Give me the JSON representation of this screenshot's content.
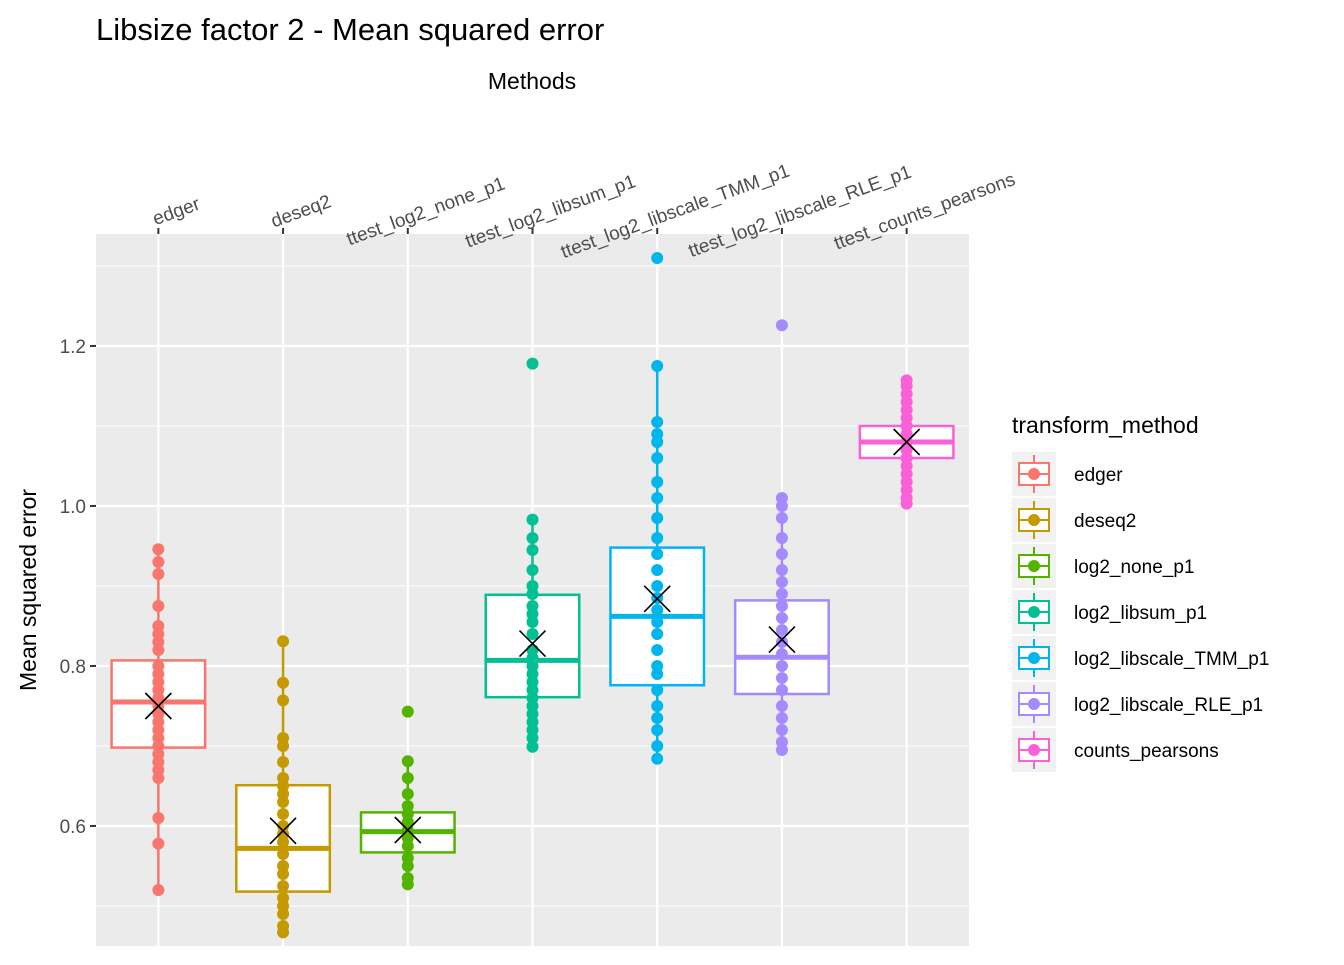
{
  "chart_data": {
    "type": "boxplot",
    "title": "Libsize factor 2 - Mean squared error",
    "xlabel": "Methods",
    "ylabel": "Mean squared error",
    "x_axis_position": "top",
    "ylim": [
      0.45,
      1.34
    ],
    "yticks": [
      0.6,
      0.8,
      1.0,
      1.2
    ],
    "ytick_labels": [
      "0.6",
      "0.8",
      "1.0",
      "1.2"
    ],
    "grid": true,
    "legend": {
      "title": "transform_method",
      "position": "right",
      "entries": [
        "edger",
        "deseq2",
        "log2_none_p1",
        "log2_libsum_p1",
        "log2_libscale_TMM_p1",
        "log2_libscale_RLE_p1",
        "counts_pearsons"
      ]
    },
    "categories": [
      "edger",
      "deseq2",
      "ttest_log2_none_p1",
      "ttest_log2_libsum_p1",
      "ttest_log2_libscale_TMM_p1",
      "ttest_log2_libscale_RLE_p1",
      "ttest_counts_pearsons"
    ],
    "series": [
      {
        "name": "edger",
        "color": "#F8766D",
        "box": {
          "q1": 0.698,
          "median": 0.755,
          "q3": 0.807
        },
        "whisker": [
          0.52,
          0.946
        ],
        "mean": 0.75,
        "points": [
          0.52,
          0.578,
          0.61,
          0.66,
          0.67,
          0.68,
          0.69,
          0.7,
          0.71,
          0.72,
          0.73,
          0.74,
          0.75,
          0.76,
          0.77,
          0.78,
          0.79,
          0.8,
          0.82,
          0.83,
          0.84,
          0.85,
          0.875,
          0.915,
          0.93,
          0.946
        ]
      },
      {
        "name": "deseq2",
        "color": "#C49A00",
        "box": {
          "q1": 0.518,
          "median": 0.572,
          "q3": 0.651
        },
        "whisker": [
          0.467,
          0.831
        ],
        "mean": 0.594,
        "points": [
          0.467,
          0.475,
          0.49,
          0.5,
          0.51,
          0.525,
          0.54,
          0.55,
          0.565,
          0.58,
          0.59,
          0.6,
          0.615,
          0.63,
          0.64,
          0.65,
          0.66,
          0.68,
          0.7,
          0.71,
          0.757,
          0.779,
          0.831
        ]
      },
      {
        "name": "log2_none_p1",
        "color": "#53B400",
        "box": {
          "q1": 0.567,
          "median": 0.593,
          "q3": 0.617
        },
        "whisker": [
          0.527,
          0.681
        ],
        "mean": 0.595,
        "points": [
          0.527,
          0.535,
          0.55,
          0.56,
          0.575,
          0.585,
          0.595,
          0.605,
          0.615,
          0.625,
          0.64,
          0.66,
          0.681,
          0.743
        ]
      },
      {
        "name": "log2_libsum_p1",
        "color": "#00C094",
        "box": {
          "q1": 0.761,
          "median": 0.807,
          "q3": 0.889
        },
        "whisker": [
          0.699,
          0.983
        ],
        "mean": 0.828,
        "points": [
          0.699,
          0.71,
          0.72,
          0.73,
          0.74,
          0.75,
          0.76,
          0.77,
          0.78,
          0.79,
          0.8,
          0.81,
          0.82,
          0.84,
          0.855,
          0.865,
          0.875,
          0.89,
          0.9,
          0.92,
          0.945,
          0.96,
          0.983,
          1.178
        ]
      },
      {
        "name": "log2_libscale_TMM_p1",
        "color": "#00B6EB",
        "box": {
          "q1": 0.776,
          "median": 0.862,
          "q3": 0.948
        },
        "whisker": [
          0.684,
          1.175
        ],
        "mean": 0.884,
        "points": [
          0.684,
          0.7,
          0.72,
          0.735,
          0.75,
          0.77,
          0.79,
          0.8,
          0.82,
          0.84,
          0.855,
          0.87,
          0.885,
          0.9,
          0.92,
          0.94,
          0.96,
          0.985,
          1.01,
          1.03,
          1.06,
          1.08,
          1.09,
          1.105,
          1.175,
          1.31
        ]
      },
      {
        "name": "log2_libscale_RLE_p1",
        "color": "#A58AFF",
        "box": {
          "q1": 0.765,
          "median": 0.811,
          "q3": 0.882
        },
        "whisker": [
          0.695,
          1.01
        ],
        "mean": 0.833,
        "points": [
          0.695,
          0.705,
          0.72,
          0.735,
          0.75,
          0.77,
          0.785,
          0.8,
          0.815,
          0.83,
          0.845,
          0.86,
          0.875,
          0.89,
          0.905,
          0.92,
          0.94,
          0.96,
          0.985,
          1.0,
          1.01,
          1.226
        ]
      },
      {
        "name": "counts_pearsons",
        "color": "#FB61D7",
        "box": {
          "q1": 1.06,
          "median": 1.08,
          "q3": 1.1
        },
        "whisker": [
          1.003,
          1.157
        ],
        "mean": 1.08,
        "points": [
          1.003,
          1.01,
          1.02,
          1.03,
          1.04,
          1.05,
          1.06,
          1.07,
          1.08,
          1.09,
          1.1,
          1.11,
          1.12,
          1.13,
          1.14,
          1.15,
          1.157
        ]
      }
    ]
  }
}
